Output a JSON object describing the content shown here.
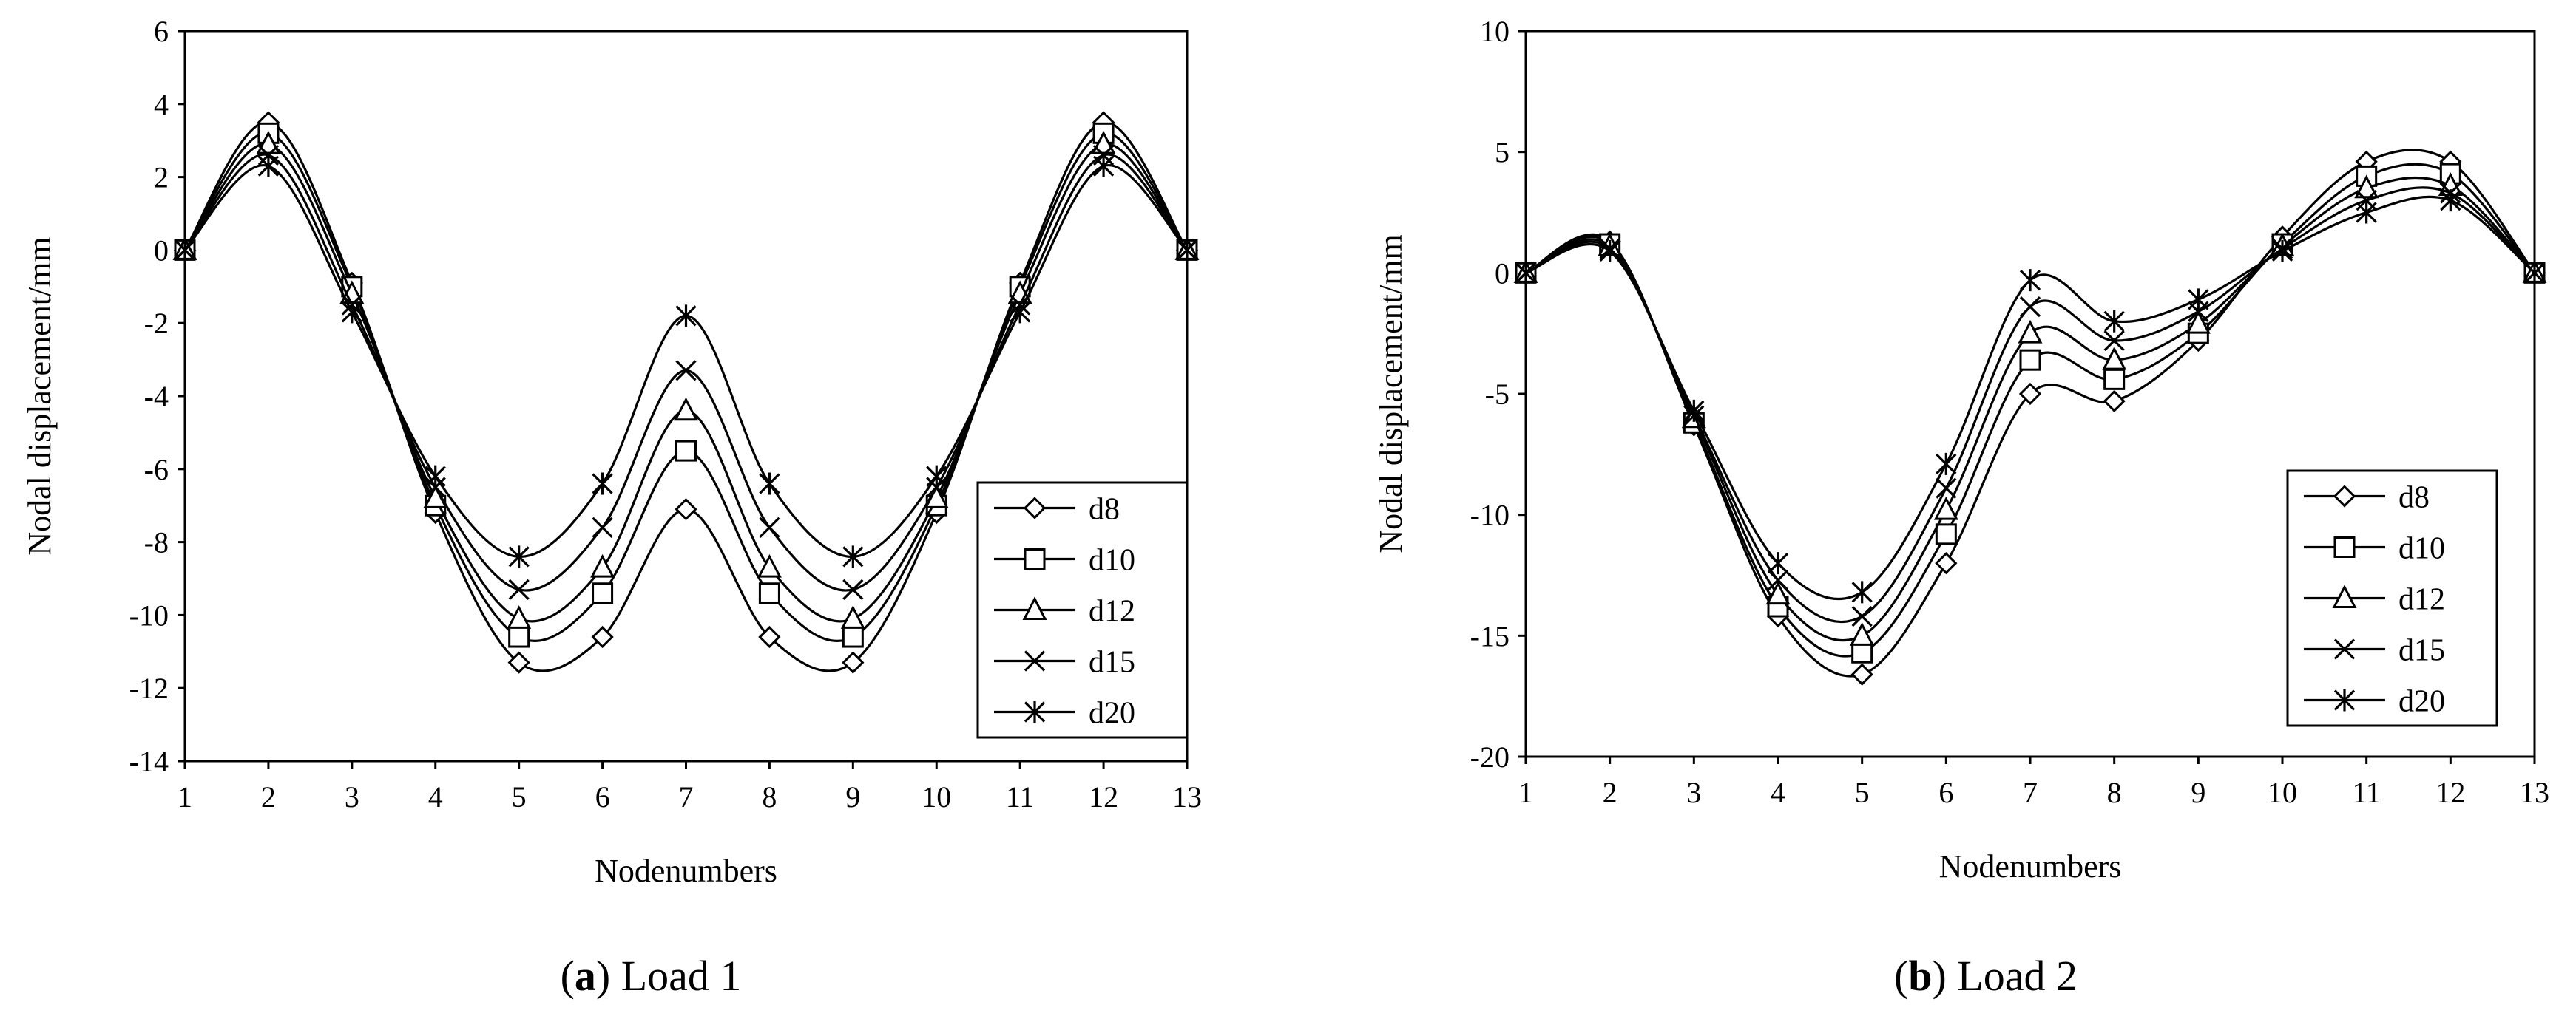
{
  "chart_data": [
    {
      "type": "line",
      "id": "a",
      "caption_letter": "a",
      "caption_text": "Load 1",
      "xlabel": "Nodenumbers",
      "ylabel": "Nodal displacement/mm",
      "xlim": [
        1,
        13
      ],
      "ylim": [
        -14,
        6
      ],
      "xticks": [
        1,
        2,
        3,
        4,
        5,
        6,
        7,
        8,
        9,
        10,
        11,
        12,
        13
      ],
      "yticks": [
        6,
        4,
        2,
        0,
        -2,
        -4,
        -6,
        -8,
        -10,
        -12,
        -14
      ],
      "legend_position": "bottom-right",
      "x": [
        1,
        2,
        3,
        4,
        5,
        6,
        7,
        8,
        9,
        10,
        11,
        12,
        13
      ],
      "series": [
        {
          "name": "d8",
          "marker": "diamond",
          "values": [
            0,
            3.5,
            -0.9,
            -7.2,
            -11.3,
            -10.6,
            -7.1,
            -10.6,
            -11.3,
            -7.2,
            -0.9,
            3.5,
            0
          ]
        },
        {
          "name": "d10",
          "marker": "square",
          "values": [
            0,
            3.2,
            -1.0,
            -7.0,
            -10.6,
            -9.4,
            -5.5,
            -9.4,
            -10.6,
            -7.0,
            -1.0,
            3.2,
            0
          ]
        },
        {
          "name": "d12",
          "marker": "triangle",
          "values": [
            0,
            2.9,
            -1.2,
            -6.8,
            -10.1,
            -8.7,
            -4.4,
            -8.7,
            -10.1,
            -6.8,
            -1.2,
            2.9,
            0
          ]
        },
        {
          "name": "d15",
          "marker": "x",
          "values": [
            0,
            2.6,
            -1.5,
            -6.5,
            -9.3,
            -7.6,
            -3.3,
            -7.6,
            -9.3,
            -6.5,
            -1.5,
            2.6,
            0
          ]
        },
        {
          "name": "d20",
          "marker": "asterisk",
          "values": [
            0,
            2.3,
            -1.7,
            -6.2,
            -8.4,
            -6.4,
            -1.8,
            -6.4,
            -8.4,
            -6.2,
            -1.7,
            2.3,
            0
          ]
        }
      ]
    },
    {
      "type": "line",
      "id": "b",
      "caption_letter": "b",
      "caption_text": "Load 2",
      "xlabel": "Nodenumbers",
      "ylabel": "Nodal displacement/mm",
      "xlim": [
        1,
        13
      ],
      "ylim": [
        -20,
        10
      ],
      "xticks": [
        1,
        2,
        3,
        4,
        5,
        6,
        7,
        8,
        9,
        10,
        11,
        12,
        13
      ],
      "yticks": [
        10,
        5,
        0,
        -5,
        -10,
        -15,
        -20
      ],
      "legend_position": "bottom-right",
      "x": [
        1,
        2,
        3,
        4,
        5,
        6,
        7,
        8,
        9,
        10,
        11,
        12,
        13
      ],
      "series": [
        {
          "name": "d8",
          "marker": "diamond",
          "values": [
            0,
            1.3,
            -6.3,
            -14.2,
            -16.6,
            -12.0,
            -5.0,
            -5.3,
            -2.8,
            1.5,
            4.6,
            4.6,
            0
          ]
        },
        {
          "name": "d10",
          "marker": "square",
          "values": [
            0,
            1.2,
            -6.2,
            -13.8,
            -15.7,
            -10.8,
            -3.6,
            -4.4,
            -2.5,
            1.2,
            4.0,
            4.1,
            0
          ]
        },
        {
          "name": "d12",
          "marker": "triangle",
          "values": [
            0,
            1.1,
            -6.0,
            -13.3,
            -15.0,
            -9.8,
            -2.5,
            -3.6,
            -2.1,
            1.1,
            3.5,
            3.6,
            0
          ]
        },
        {
          "name": "d15",
          "marker": "x",
          "values": [
            0,
            1.0,
            -5.9,
            -12.7,
            -14.2,
            -8.9,
            -1.4,
            -2.8,
            -1.6,
            1.0,
            3.0,
            3.3,
            0
          ]
        },
        {
          "name": "d20",
          "marker": "asterisk",
          "values": [
            0,
            0.9,
            -5.7,
            -12.0,
            -13.2,
            -7.9,
            -0.3,
            -2.0,
            -1.1,
            0.9,
            2.5,
            3.0,
            0
          ]
        }
      ]
    }
  ]
}
